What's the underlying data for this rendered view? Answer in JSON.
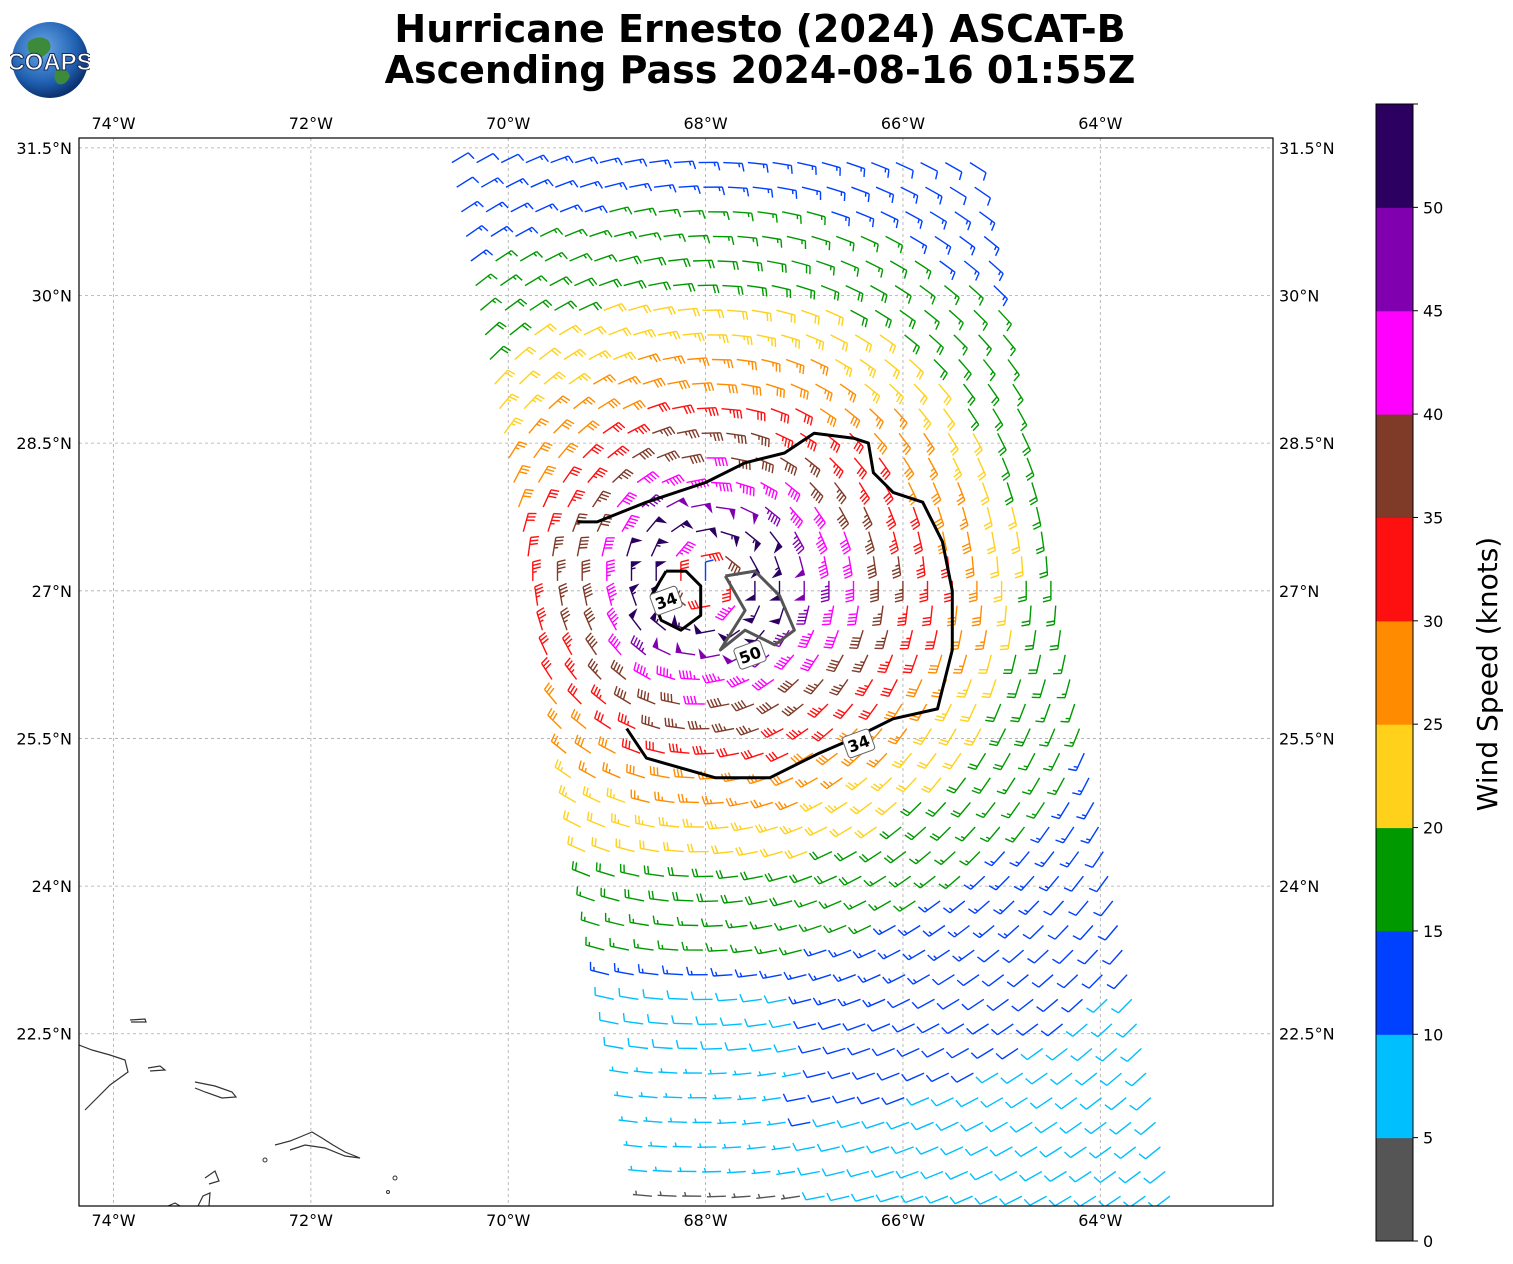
{
  "header": {
    "title_line1": "Hurricane Ernesto (2024) ASCAT-B",
    "title_line2": "Ascending Pass 2024-08-16 01:55Z",
    "logo_text": "COAPS"
  },
  "map": {
    "lon_range": [
      -74.35,
      -62.25
    ],
    "lat_range": [
      20.75,
      31.6
    ],
    "lon_ticks": [
      {
        "value": -74,
        "label": "74°W"
      },
      {
        "value": -72,
        "label": "72°W"
      },
      {
        "value": -70,
        "label": "70°W"
      },
      {
        "value": -68,
        "label": "68°W"
      },
      {
        "value": -66,
        "label": "66°W"
      },
      {
        "value": -64,
        "label": "64°W"
      }
    ],
    "lat_ticks": [
      {
        "value": 31.5,
        "label": "31.5°N"
      },
      {
        "value": 30,
        "label": "30°N"
      },
      {
        "value": 28.5,
        "label": "28.5°N"
      },
      {
        "value": 27,
        "label": "27°N"
      },
      {
        "value": 25.5,
        "label": "25.5°N"
      },
      {
        "value": 24,
        "label": "24°N"
      },
      {
        "value": 22.5,
        "label": "22.5°N"
      }
    ],
    "storm_center": {
      "lon": -68.0,
      "lat": 27.1
    },
    "contours": [
      {
        "label": "34",
        "label_lon": -68.4,
        "label_lat": 26.9,
        "color": "#000000",
        "points": [
          [
            -68.4,
            27.2
          ],
          [
            -68.2,
            27.2
          ],
          [
            -68.05,
            27.05
          ],
          [
            -68.05,
            26.75
          ],
          [
            -68.25,
            26.6
          ],
          [
            -68.45,
            26.7
          ],
          [
            -68.55,
            26.95
          ],
          [
            -68.4,
            27.2
          ]
        ]
      },
      {
        "label": "50",
        "label_lon": -67.55,
        "label_lat": 26.35,
        "color": "#555555",
        "points": [
          [
            -67.8,
            27.15
          ],
          [
            -67.5,
            27.2
          ],
          [
            -67.25,
            26.95
          ],
          [
            -67.1,
            26.6
          ],
          [
            -67.3,
            26.45
          ],
          [
            -67.6,
            26.6
          ],
          [
            -67.85,
            26.4
          ],
          [
            -67.6,
            26.8
          ],
          [
            -67.8,
            27.15
          ]
        ]
      },
      {
        "label": "34",
        "label_lon": -66.45,
        "label_lat": 25.45,
        "color": "#000000",
        "points": [
          [
            -69.3,
            27.7
          ],
          [
            -69.1,
            27.7
          ],
          [
            -68.6,
            27.9
          ],
          [
            -68.0,
            28.1
          ],
          [
            -67.6,
            28.3
          ],
          [
            -67.2,
            28.4
          ],
          [
            -66.9,
            28.6
          ],
          [
            -66.5,
            28.55
          ],
          [
            -66.35,
            28.5
          ],
          [
            -66.3,
            28.2
          ],
          [
            -66.1,
            28.0
          ],
          [
            -65.8,
            27.9
          ],
          [
            -65.6,
            27.5
          ],
          [
            -65.5,
            27.0
          ],
          [
            -65.5,
            26.4
          ],
          [
            -65.65,
            25.8
          ],
          [
            -66.1,
            25.7
          ],
          [
            -66.5,
            25.5
          ],
          [
            -66.85,
            25.35
          ],
          [
            -67.35,
            25.1
          ],
          [
            -67.9,
            25.1
          ],
          [
            -68.6,
            25.3
          ],
          [
            -68.8,
            25.6
          ]
        ]
      }
    ],
    "coastline_note": "Bahamas / Hispaniola outline drawn lower-left"
  },
  "colorbar": {
    "label": "Wind Speed (knots)",
    "bounds": [
      0,
      5,
      10,
      15,
      20,
      25,
      30,
      35,
      40,
      45,
      50,
      55
    ],
    "colors": [
      "#555555",
      "#00bfff",
      "#0040ff",
      "#009a00",
      "#ffd11a",
      "#ff8c00",
      "#ff1010",
      "#803a28",
      "#ff00ff",
      "#8000b0",
      "#2b0060"
    ],
    "tick_labels": [
      "0",
      "5",
      "10",
      "15",
      "20",
      "25",
      "30",
      "35",
      "40",
      "45",
      "50"
    ]
  }
}
